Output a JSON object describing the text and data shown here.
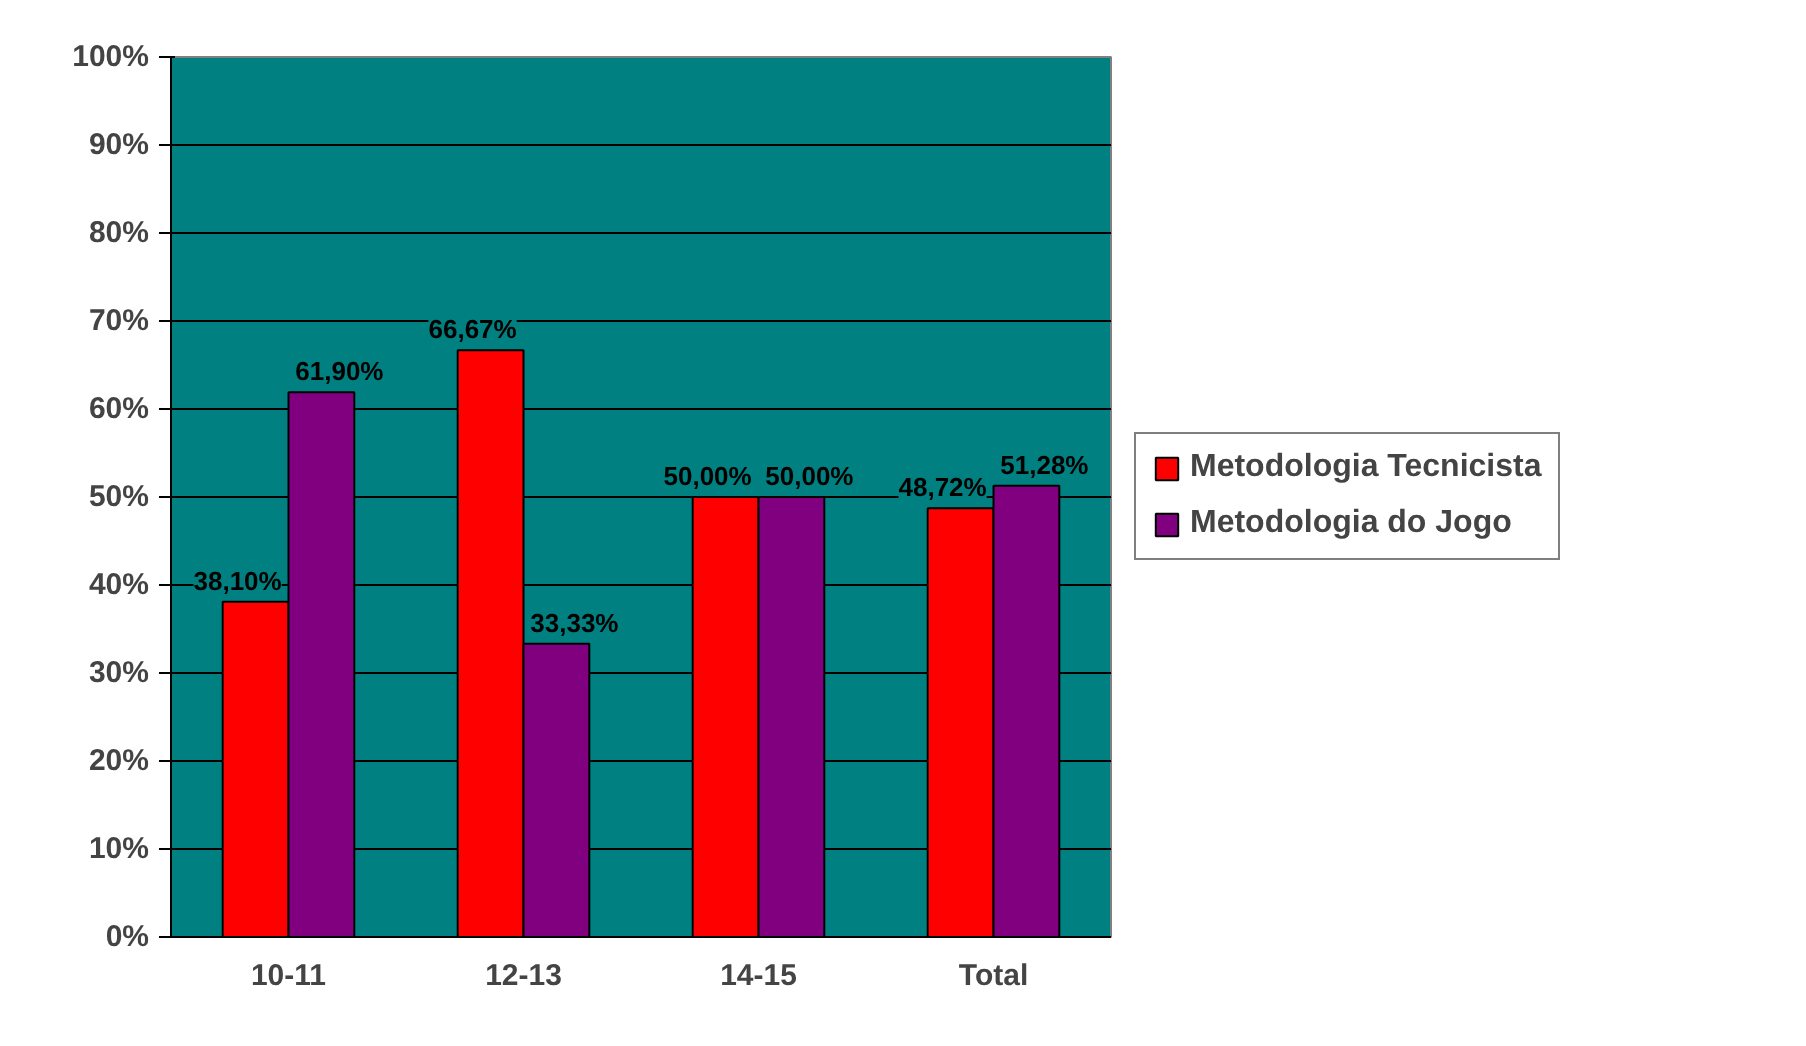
{
  "chart_data": {
    "type": "bar",
    "categories": [
      "10-11",
      "12-13",
      "14-15",
      "Total"
    ],
    "series": [
      {
        "name": "Metodologia Tecnicista",
        "color": "#ff0000",
        "values": [
          38.1,
          66.67,
          50.0,
          48.72
        ],
        "value_labels": [
          "38,10%",
          "66,67%",
          "50,00%",
          "48,72%"
        ]
      },
      {
        "name": "Metodologia do Jogo",
        "color": "#800080",
        "values": [
          61.9,
          33.33,
          50.0,
          51.28
        ],
        "value_labels": [
          "61,90%",
          "33,33%",
          "50,00%",
          "51,28%"
        ]
      }
    ],
    "ylim": [
      0,
      100
    ],
    "yticks": [
      {
        "value": 0,
        "label": "0%"
      },
      {
        "value": 10,
        "label": "10%"
      },
      {
        "value": 20,
        "label": "20%"
      },
      {
        "value": 30,
        "label": "30%"
      },
      {
        "value": 40,
        "label": "40%"
      },
      {
        "value": 50,
        "label": "50%"
      },
      {
        "value": 60,
        "label": "60%"
      },
      {
        "value": 70,
        "label": "70%"
      },
      {
        "value": 80,
        "label": "80%"
      },
      {
        "value": 90,
        "label": "90%"
      },
      {
        "value": 100,
        "label": "100%"
      }
    ],
    "grid": "y",
    "legend": "right"
  }
}
